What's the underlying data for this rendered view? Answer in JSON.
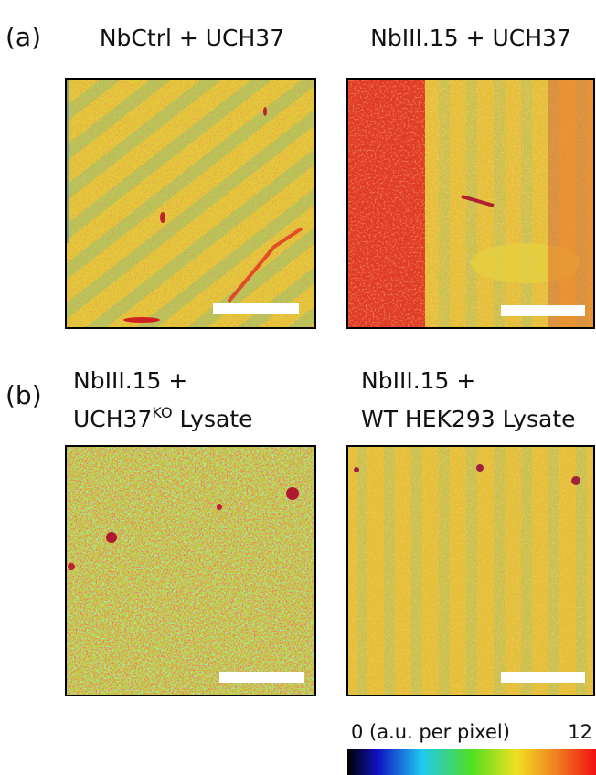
{
  "panels": [
    {
      "label": "(a)",
      "items": [
        {
          "title": "NbCtrl + UCH37"
        },
        {
          "title": "NbIII.15 + UCH37"
        }
      ]
    },
    {
      "label": "(b)",
      "items": [
        {
          "line1": "NbIII.15 +",
          "line2": "UCH37",
          "superscript": "KO",
          "line2_end": " Lysate"
        },
        {
          "line1": "NbIII.15 +",
          "line2": "WT HEK293 Lysate"
        }
      ]
    }
  ],
  "colorbar": {
    "min_label": "0 (a.u. per pixel)",
    "max_label": "12"
  }
}
